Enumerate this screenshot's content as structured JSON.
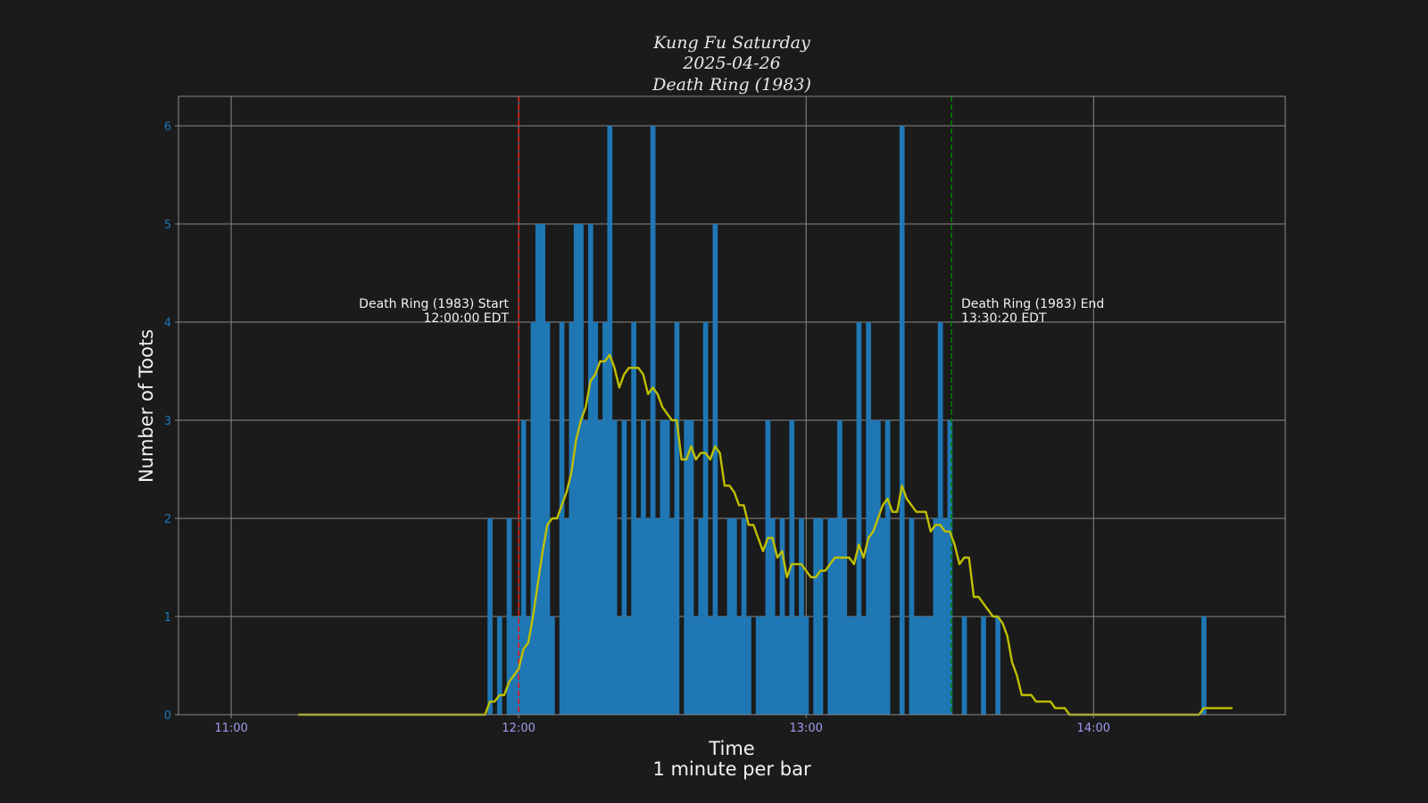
{
  "chart_data": {
    "type": "bar",
    "title": [
      "Kung Fu Saturday",
      "2025-04-26",
      "Death Ring (1983)"
    ],
    "xlabel": [
      "Time",
      "1 minute per bar"
    ],
    "ylabel": "Number of Toots",
    "xlim": [
      "10:49",
      "14:40"
    ],
    "ylim": [
      0,
      6.3
    ],
    "x_ticks": [
      "11:00",
      "12:00",
      "13:00",
      "14:00"
    ],
    "y_ticks": [
      0,
      1,
      2,
      3,
      4,
      5,
      6
    ],
    "grid": true,
    "bars": {
      "x": [
        "11:54",
        "11:55",
        "11:56",
        "11:57",
        "11:58",
        "11:59",
        "12:00",
        "12:01",
        "12:02",
        "12:03",
        "12:04",
        "12:05",
        "12:06",
        "12:07",
        "12:08",
        "12:09",
        "12:10",
        "12:11",
        "12:12",
        "12:13",
        "12:14",
        "12:15",
        "12:16",
        "12:17",
        "12:18",
        "12:19",
        "12:20",
        "12:21",
        "12:22",
        "12:23",
        "12:24",
        "12:25",
        "12:26",
        "12:27",
        "12:28",
        "12:29",
        "12:30",
        "12:31",
        "12:32",
        "12:33",
        "12:34",
        "12:35",
        "12:36",
        "12:37",
        "12:38",
        "12:39",
        "12:40",
        "12:41",
        "12:42",
        "12:43",
        "12:44",
        "12:45",
        "12:46",
        "12:47",
        "12:48",
        "12:49",
        "12:50",
        "12:51",
        "12:52",
        "12:53",
        "12:54",
        "12:55",
        "12:56",
        "12:57",
        "12:58",
        "12:59",
        "13:00",
        "13:01",
        "13:02",
        "13:03",
        "13:04",
        "13:05",
        "13:06",
        "13:07",
        "13:08",
        "13:09",
        "13:10",
        "13:11",
        "13:12",
        "13:13",
        "13:14",
        "13:15",
        "13:16",
        "13:17",
        "13:18",
        "13:19",
        "13:20",
        "13:21",
        "13:22",
        "13:23",
        "13:24",
        "13:25",
        "13:26",
        "13:27",
        "13:28",
        "13:29",
        "13:30",
        "13:31",
        "13:32",
        "13:33",
        "13:34",
        "13:35",
        "13:36",
        "13:37",
        "13:38",
        "13:39",
        "13:40",
        "14:23"
      ],
      "values": [
        2,
        0,
        1,
        0,
        2,
        1,
        1,
        3,
        1,
        4,
        5,
        5,
        4,
        1,
        0,
        4,
        2,
        4,
        5,
        5,
        3,
        5,
        4,
        3,
        4,
        6,
        3,
        1,
        3,
        1,
        4,
        2,
        3,
        2,
        6,
        2,
        3,
        3,
        2,
        4,
        0,
        3,
        3,
        1,
        2,
        4,
        1,
        5,
        1,
        1,
        2,
        2,
        1,
        2,
        1,
        0,
        1,
        1,
        3,
        2,
        1,
        2,
        1,
        3,
        1,
        2,
        1,
        0,
        2,
        2,
        0,
        2,
        2,
        3,
        2,
        1,
        1,
        4,
        1,
        4,
        3,
        3,
        2,
        3,
        0,
        0,
        6,
        0,
        2,
        1,
        1,
        1,
        1,
        2,
        4,
        2,
        3,
        0,
        0,
        1,
        0,
        0,
        0,
        1,
        0,
        0,
        1,
        1
      ],
      "color": "#1f77b4"
    },
    "moving_average": {
      "x_range": [
        "11:14",
        "14:29"
      ],
      "color": "#bfbf00"
    },
    "annotations": [
      {
        "time": "12:00:00",
        "lines": [
          "Death Ring (1983) Start",
          "12:00:00 EDT"
        ],
        "color": "#e41a1c"
      },
      {
        "time": "13:30:20",
        "lines": [
          "Death Ring (1983) End",
          "13:30:20 EDT"
        ],
        "color": "#008000"
      }
    ]
  },
  "colors": {
    "background": "#1b1b1b",
    "grid": "#8a8a8a",
    "ytick": "#1f77b4",
    "xtick": "#9c9cf0"
  }
}
